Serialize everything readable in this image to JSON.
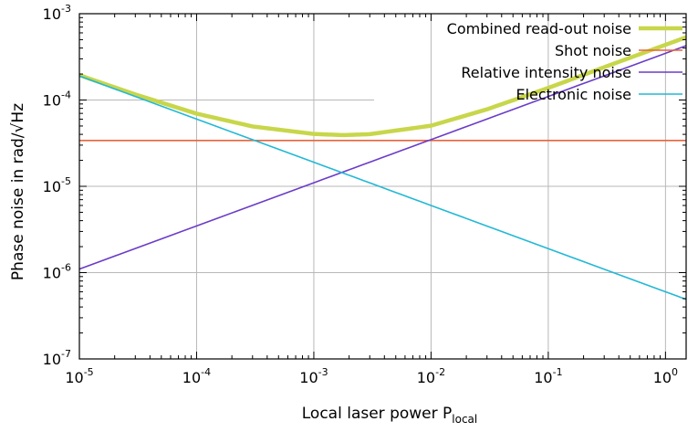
{
  "chart_data": {
    "type": "line",
    "xlabel": "Local laser power P",
    "xlabel_subscript": "local",
    "ylabel": "Phase noise in rad/√Hz",
    "xscale": "log",
    "yscale": "log",
    "xlim": [
      1e-05,
      1.5
    ],
    "ylim": [
      1e-07,
      0.001
    ],
    "grid": true,
    "legend_position": "top-right",
    "x_ticks": [
      {
        "base": "10",
        "exp": "-5",
        "value": 1e-05
      },
      {
        "base": "10",
        "exp": "-4",
        "value": 0.0001
      },
      {
        "base": "10",
        "exp": "-3",
        "value": 0.001
      },
      {
        "base": "10",
        "exp": "-2",
        "value": 0.01
      },
      {
        "base": "10",
        "exp": "-1",
        "value": 0.1
      },
      {
        "base": "10",
        "exp": "0",
        "value": 1
      }
    ],
    "y_ticks": [
      {
        "base": "10",
        "exp": "-7",
        "value": 1e-07
      },
      {
        "base": "10",
        "exp": "-6",
        "value": 1e-06
      },
      {
        "base": "10",
        "exp": "-5",
        "value": 1e-05
      },
      {
        "base": "10",
        "exp": "-4",
        "value": 0.0001
      },
      {
        "base": "10",
        "exp": "-3",
        "value": 0.001
      }
    ],
    "series": [
      {
        "name": "Combined read-out noise",
        "color": "#c8d64a",
        "x": [
          1e-05,
          3e-05,
          0.0001,
          0.0003,
          0.001,
          0.0018,
          0.003,
          0.01,
          0.03,
          0.1,
          0.3,
          1,
          1.5
        ],
        "y": [
          0.000194,
          0.000116,
          6.95e-05,
          4.94e-05,
          4.04e-05,
          3.92e-05,
          4.02e-05,
          5.04e-05,
          7.8e-05,
          0.000138,
          0.00024,
          0.000436,
          0.000533
        ]
      },
      {
        "name": "Shot noise",
        "color": "#e8643c",
        "x": [
          1e-05,
          1.5
        ],
        "y": [
          3.4e-05,
          3.4e-05
        ]
      },
      {
        "name": "Relative intensity noise",
        "color": "#6a3cc8",
        "x": [
          1e-05,
          0.001,
          0.01,
          1,
          1.5
        ],
        "y": [
          1.1e-06,
          1.1e-05,
          3.48e-05,
          0.000348,
          0.000426
        ]
      },
      {
        "name": "Electronic noise",
        "color": "#22b8d6",
        "x": [
          1e-05,
          0.001,
          0.01,
          1,
          1.5
        ],
        "y": [
          0.00019,
          1.9e-05,
          6e-06,
          6e-07,
          4.9e-07
        ]
      }
    ]
  }
}
